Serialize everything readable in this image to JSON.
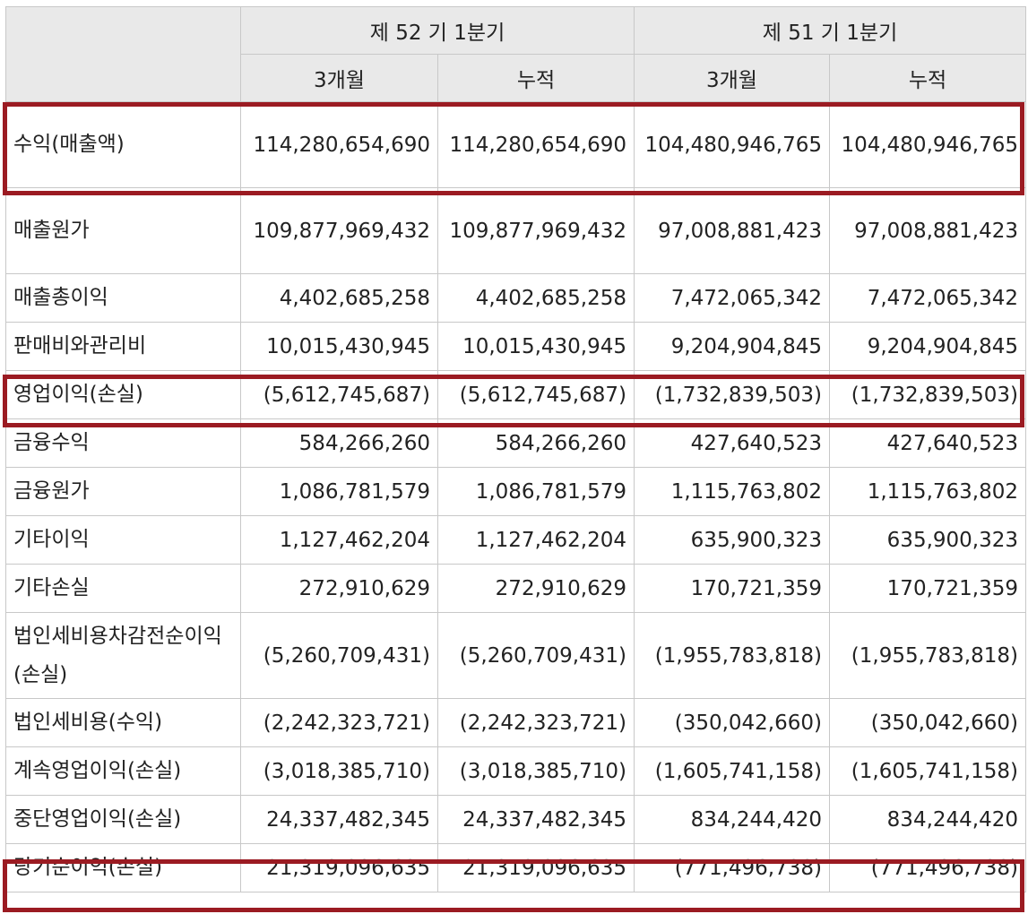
{
  "header": {
    "period_current": "제 52 기 1분기",
    "period_previous": "제 51 기 1분기",
    "sub_cols": [
      "3개월",
      "누적",
      "3개월",
      "누적"
    ]
  },
  "rows": [
    {
      "label": "수익(매출액)",
      "values": [
        "114,280,654,690",
        "114,280,654,690",
        "104,480,946,765",
        "104,480,946,765"
      ],
      "highlighted": true
    },
    {
      "label": "매출원가",
      "values": [
        "109,877,969,432",
        "109,877,969,432",
        "97,008,881,423",
        "97,008,881,423"
      ],
      "highlighted": false
    },
    {
      "label": "매출총이익",
      "values": [
        "4,402,685,258",
        "4,402,685,258",
        "7,472,065,342",
        "7,472,065,342"
      ],
      "highlighted": false
    },
    {
      "label": "판매비와관리비",
      "values": [
        "10,015,430,945",
        "10,015,430,945",
        "9,204,904,845",
        "9,204,904,845"
      ],
      "highlighted": false
    },
    {
      "label": "영업이익(손실)",
      "values": [
        "(5,612,745,687)",
        "(5,612,745,687)",
        "(1,732,839,503)",
        "(1,732,839,503)"
      ],
      "highlighted": true
    },
    {
      "label": "금융수익",
      "values": [
        "584,266,260",
        "584,266,260",
        "427,640,523",
        "427,640,523"
      ],
      "highlighted": false
    },
    {
      "label": "금융원가",
      "values": [
        "1,086,781,579",
        "1,086,781,579",
        "1,115,763,802",
        "1,115,763,802"
      ],
      "highlighted": false
    },
    {
      "label": "기타이익",
      "values": [
        "1,127,462,204",
        "1,127,462,204",
        "635,900,323",
        "635,900,323"
      ],
      "highlighted": false
    },
    {
      "label": "기타손실",
      "values": [
        "272,910,629",
        "272,910,629",
        "170,721,359",
        "170,721,359"
      ],
      "highlighted": false
    },
    {
      "label": "법인세비용차감전순이익(손실)",
      "values": [
        "(5,260,709,431)",
        "(5,260,709,431)",
        "(1,955,783,818)",
        "(1,955,783,818)"
      ],
      "highlighted": false
    },
    {
      "label": "법인세비용(수익)",
      "values": [
        "(2,242,323,721)",
        "(2,242,323,721)",
        "(350,042,660)",
        "(350,042,660)"
      ],
      "highlighted": false
    },
    {
      "label": "계속영업이익(손실)",
      "values": [
        "(3,018,385,710)",
        "(3,018,385,710)",
        "(1,605,741,158)",
        "(1,605,741,158)"
      ],
      "highlighted": false
    },
    {
      "label": "중단영업이익(손실)",
      "values": [
        "24,337,482,345",
        "24,337,482,345",
        "834,244,420",
        "834,244,420"
      ],
      "highlighted": false
    },
    {
      "label": "당기순이익(손실)",
      "values": [
        "21,319,096,635",
        "21,319,096,635",
        "(771,496,738)",
        "(771,496,738)"
      ],
      "highlighted": true
    }
  ],
  "colors": {
    "highlight_border": "#9b1b22",
    "header_bg": "#e9e9e9",
    "grid": "#c8c8c8"
  }
}
